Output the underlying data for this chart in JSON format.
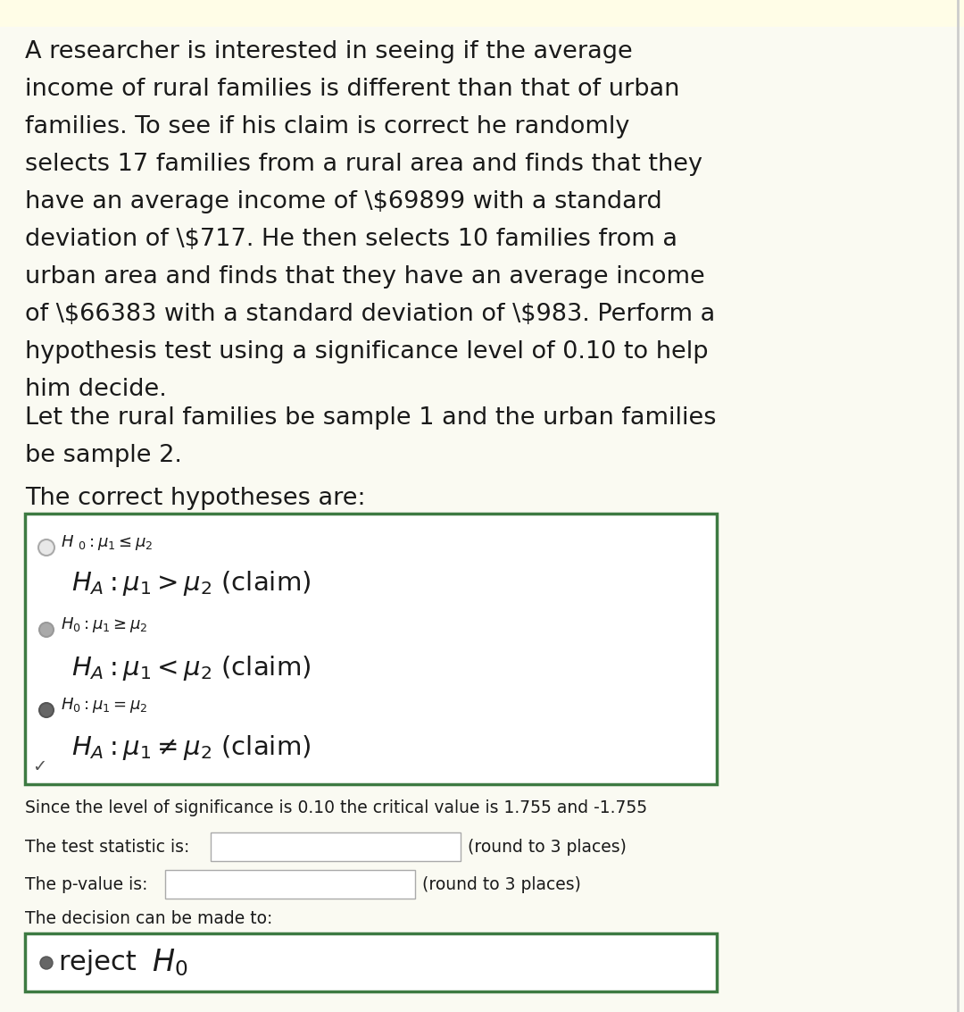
{
  "background_color": "#fafaf2",
  "top_bar_color": "#d8d8d8",
  "green_border_color": "#3d7a42",
  "text_color": "#1a1a1a",
  "significance_text": "Since the level of significance is 0.10 the critical value is 1.755 and -1.755",
  "test_stat_label": "The test statistic is:",
  "test_stat_round": "(round to 3 places)",
  "pvalue_label": "The p-value is:",
  "pvalue_round": "(round to 3 places)",
  "decision_label": "The decision can be made to:",
  "input_box_color": "#ffffff",
  "input_box_border": "#aaaaaa",
  "fig_width": 10.8,
  "fig_height": 11.33,
  "dpi": 100
}
